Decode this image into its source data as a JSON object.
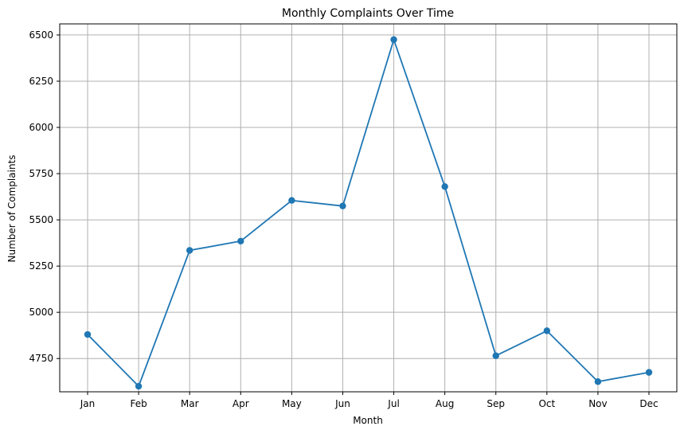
{
  "chart_data": {
    "type": "line",
    "title": "Monthly Complaints Over Time",
    "xlabel": "Month",
    "ylabel": "Number of Complaints",
    "categories": [
      "Jan",
      "Feb",
      "Mar",
      "Apr",
      "May",
      "Jun",
      "Jul",
      "Aug",
      "Sep",
      "Oct",
      "Nov",
      "Dec"
    ],
    "series": [
      {
        "values": [
          4880,
          4600,
          5335,
          5385,
          5605,
          5575,
          6475,
          5680,
          4765,
          4900,
          4625,
          4675
        ],
        "color": "#1f77b4",
        "marker": "circle"
      }
    ],
    "yticks": [
      4750,
      5000,
      5250,
      5500,
      5750,
      6000,
      6250,
      6500
    ],
    "ylim": [
      4570,
      6560
    ],
    "grid": true
  }
}
